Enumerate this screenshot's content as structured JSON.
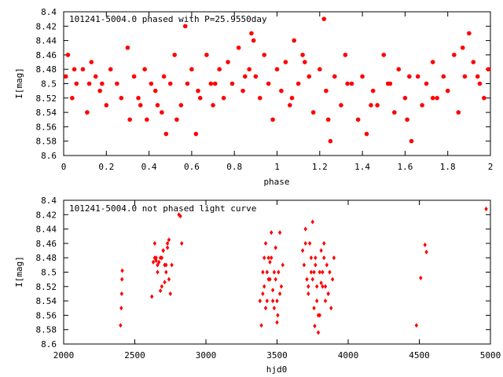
{
  "chart_data": [
    {
      "type": "scatter",
      "title": "101241-5004.0 phased with P=25.9550day",
      "xlabel": "phase",
      "ylabel": "I[mag]",
      "xlim": [
        0,
        2
      ],
      "ylim": [
        8.6,
        8.4
      ],
      "y_inverted": true,
      "xticks": [
        0,
        0.2,
        0.4,
        0.6,
        0.8,
        1,
        1.2,
        1.4,
        1.6,
        1.8,
        2
      ],
      "xtick_labels": [
        "0",
        "0.2",
        "0.4",
        "0.6",
        "0.8",
        "1",
        "1.2",
        "1.4",
        "1.6",
        "1.8",
        "2"
      ],
      "yticks": [
        8.4,
        8.42,
        8.44,
        8.46,
        8.48,
        8.5,
        8.52,
        8.54,
        8.56,
        8.58,
        8.6
      ],
      "ytick_labels": [
        "8.4",
        "8.42",
        "8.44",
        "8.46",
        "8.48",
        "8.5",
        "8.52",
        "8.54",
        "8.56",
        "8.58",
        "8.6"
      ],
      "marker_color": "#ff0000",
      "marker": "filled-circle",
      "grid": false,
      "series": [
        {
          "x": [
            0.01,
            0.02,
            0.04,
            0.06,
            0.09,
            0.11,
            0.13,
            0.15,
            0.17,
            0.2,
            0.22,
            0.25,
            0.27,
            0.3,
            0.31,
            0.33,
            0.36,
            0.38,
            0.39,
            0.41,
            0.43,
            0.46,
            0.47,
            0.48,
            0.5,
            0.52,
            0.55,
            0.57,
            0.58,
            0.6,
            0.62,
            0.64,
            0.67,
            0.69,
            0.7,
            0.73,
            0.75,
            0.77,
            0.79,
            0.82,
            0.84,
            0.87,
            0.88,
            0.9,
            0.92,
            0.94,
            0.96,
            0.98,
            1.0,
            1.02,
            1.04,
            1.06,
            1.08,
            1.1,
            1.12,
            1.15,
            1.17,
            1.2,
            1.22,
            1.23,
            1.25,
            1.27,
            1.3,
            1.32,
            1.35,
            1.38,
            1.4,
            1.42,
            1.45,
            1.47,
            1.5,
            1.52,
            1.55,
            1.57,
            1.6,
            1.61,
            1.63,
            1.66,
            1.68,
            1.7,
            1.73,
            1.75,
            1.78,
            1.8,
            1.83,
            1.85,
            1.88,
            1.9,
            1.92,
            1.95,
            1.97,
            1.99,
            0.05,
            0.18,
            0.35,
            0.53,
            0.71,
            0.89,
            1.07,
            1.24,
            1.44,
            1.62,
            1.87,
            0.12,
            0.44,
            0.63,
            0.85,
            1.13,
            1.33,
            1.53,
            1.73,
            1.94
          ],
          "y": [
            8.49,
            8.46,
            8.52,
            8.5,
            8.48,
            8.54,
            8.47,
            8.49,
            8.51,
            8.53,
            8.48,
            8.5,
            8.52,
            8.45,
            8.55,
            8.49,
            8.53,
            8.48,
            8.55,
            8.5,
            8.51,
            8.54,
            8.49,
            8.57,
            8.5,
            8.46,
            8.53,
            8.42,
            8.5,
            8.48,
            8.57,
            8.52,
            8.46,
            8.5,
            8.53,
            8.48,
            8.52,
            8.47,
            8.5,
            8.45,
            8.51,
            8.48,
            8.43,
            8.49,
            8.52,
            8.46,
            8.5,
            8.55,
            8.48,
            8.51,
            8.47,
            8.53,
            8.44,
            8.5,
            8.46,
            8.49,
            8.54,
            8.48,
            8.41,
            8.51,
            8.58,
            8.49,
            8.53,
            8.46,
            8.5,
            8.55,
            8.49,
            8.57,
            8.51,
            8.53,
            8.46,
            8.5,
            8.54,
            8.48,
            8.52,
            8.55,
            8.58,
            8.49,
            8.53,
            8.5,
            8.47,
            8.52,
            8.49,
            8.51,
            8.46,
            8.54,
            8.49,
            8.43,
            8.47,
            8.5,
            8.52,
            8.48,
            8.48,
            8.5,
            8.52,
            8.55,
            8.5,
            8.44,
            8.52,
            8.55,
            8.53,
            8.49,
            8.45,
            8.5,
            8.53,
            8.51,
            8.49,
            8.47,
            8.5,
            8.5,
            8.52,
            8.49
          ]
        }
      ]
    },
    {
      "type": "scatter",
      "title": "101241-5004.0 not phased light curve",
      "xlabel": "hjd0",
      "ylabel": "I[mag]",
      "xlim": [
        2000,
        5000
      ],
      "ylim": [
        8.6,
        8.4
      ],
      "y_inverted": true,
      "xticks": [
        2000,
        2500,
        3000,
        3500,
        4000,
        4500,
        5000
      ],
      "xtick_labels": [
        "2000",
        "2500",
        "3000",
        "3500",
        "4000",
        "4500",
        "5000"
      ],
      "yticks": [
        8.4,
        8.42,
        8.44,
        8.46,
        8.48,
        8.5,
        8.52,
        8.54,
        8.56,
        8.58,
        8.6
      ],
      "ytick_labels": [
        "8.4",
        "8.42",
        "8.44",
        "8.46",
        "8.48",
        "8.5",
        "8.52",
        "8.54",
        "8.56",
        "8.58",
        "8.6"
      ],
      "marker_color": "#ff0000",
      "marker": "small-diamond",
      "grid": false,
      "series": [
        {
          "x": [
            2400,
            2405,
            2408,
            2410,
            2412,
            2620,
            2630,
            2640,
            2650,
            2660,
            2670,
            2680,
            2690,
            2700,
            2710,
            2720,
            2730,
            2740,
            2750,
            2760,
            2640,
            2660,
            2680,
            2700,
            2720,
            2740,
            2650,
            2690,
            2710,
            2730,
            2810,
            2820,
            2830,
            3380,
            3390,
            3400,
            3410,
            3420,
            3430,
            3440,
            3450,
            3460,
            3470,
            3480,
            3490,
            3500,
            3510,
            3520,
            3530,
            3540,
            3400,
            3420,
            3440,
            3460,
            3480,
            3500,
            3520,
            3450,
            3470,
            3490,
            3430,
            3410,
            3505,
            3680,
            3690,
            3700,
            3710,
            3720,
            3730,
            3740,
            3750,
            3760,
            3770,
            3780,
            3790,
            3800,
            3810,
            3820,
            3830,
            3840,
            3850,
            3860,
            3870,
            3880,
            3890,
            3900,
            3700,
            3720,
            3740,
            3760,
            3780,
            3800,
            3820,
            3840,
            3860,
            3750,
            3770,
            3790,
            3810,
            3830,
            3765,
            4480,
            4510,
            4540,
            4550,
            4970
          ],
          "y": [
            8.574,
            8.55,
            8.53,
            8.51,
            8.498,
            8.534,
            8.486,
            8.46,
            8.484,
            8.5,
            8.486,
            8.526,
            8.48,
            8.47,
            8.514,
            8.49,
            8.46,
            8.51,
            8.53,
            8.49,
            8.48,
            8.49,
            8.48,
            8.47,
            8.5,
            8.455,
            8.48,
            8.52,
            8.49,
            8.466,
            8.42,
            8.422,
            8.46,
            8.54,
            8.574,
            8.5,
            8.52,
            8.46,
            8.54,
            8.48,
            8.51,
            8.445,
            8.525,
            8.5,
            8.466,
            8.54,
            8.5,
            8.445,
            8.52,
            8.49,
            8.53,
            8.55,
            8.51,
            8.48,
            8.55,
            8.57,
            8.53,
            8.486,
            8.54,
            8.51,
            8.5,
            8.48,
            8.56,
            8.47,
            8.49,
            8.44,
            8.51,
            8.53,
            8.46,
            8.5,
            8.43,
            8.55,
            8.48,
            8.52,
            8.584,
            8.5,
            8.47,
            8.52,
            8.46,
            8.54,
            8.49,
            8.53,
            8.5,
            8.55,
            8.51,
            8.48,
            8.46,
            8.52,
            8.48,
            8.5,
            8.54,
            8.56,
            8.5,
            8.52,
            8.53,
            8.51,
            8.49,
            8.56,
            8.515,
            8.48,
            8.575,
            8.574,
            8.508,
            8.462,
            8.472,
            8.412
          ]
        }
      ]
    }
  ]
}
